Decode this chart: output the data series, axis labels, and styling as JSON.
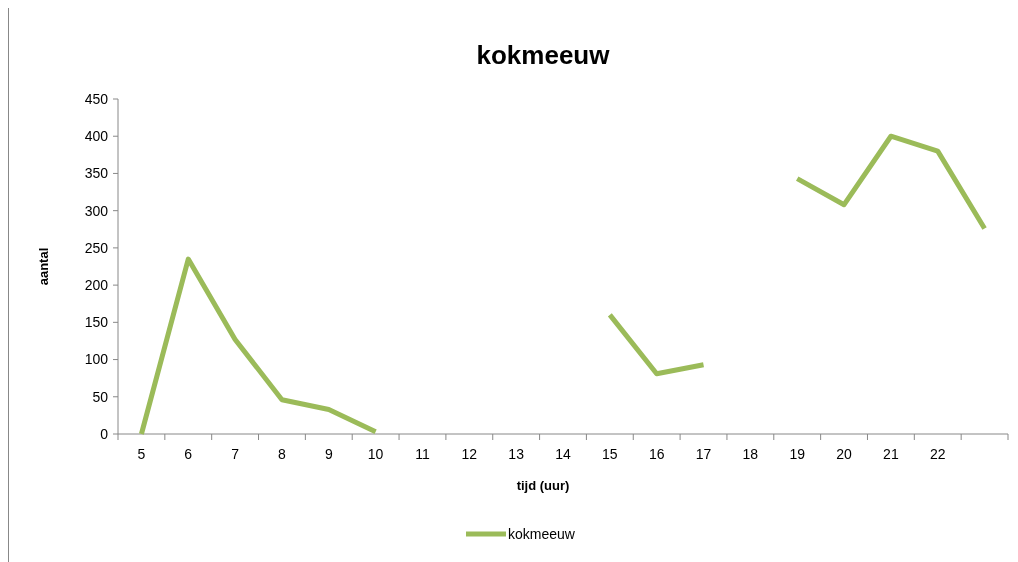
{
  "chart_data": {
    "type": "line",
    "title": "kokmeeuw",
    "xlabel": "tijd (uur)",
    "ylabel": "aantal",
    "categories": [
      "5",
      "6",
      "7",
      "8",
      "9",
      "10",
      "11",
      "12",
      "13",
      "14",
      "15",
      "16",
      "17",
      "18",
      "19",
      "20",
      "21",
      "22",
      null
    ],
    "series": [
      {
        "name": "kokmeeuw",
        "color": "#9bbb59",
        "values": [
          0,
          235,
          127,
          46,
          33,
          3,
          null,
          null,
          null,
          null,
          160,
          81,
          93,
          null,
          343,
          308,
          400,
          380,
          276
        ]
      }
    ],
    "ylim": [
      0,
      450
    ],
    "yticks": [
      0,
      50,
      100,
      150,
      200,
      250,
      300,
      350,
      400,
      450
    ],
    "grid": false,
    "legend": "bottom",
    "marker": "none",
    "line_style": "solid"
  }
}
